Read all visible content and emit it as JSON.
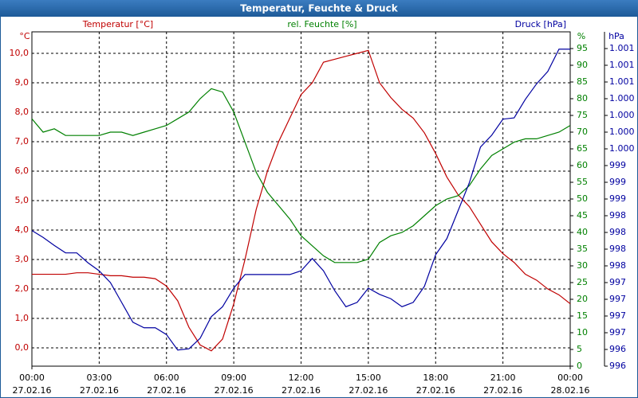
{
  "chart_data": {
    "type": "line",
    "title": "Temperatur, Feuchte & Druck",
    "ylabel": "°C",
    "y2label": "%",
    "y3label": "hPa",
    "x": [
      0,
      0.5,
      1,
      1.5,
      2,
      2.5,
      3,
      3.5,
      4,
      4.5,
      5,
      5.5,
      6,
      6.5,
      7,
      7.5,
      8,
      8.5,
      9,
      9.5,
      10,
      10.5,
      11,
      11.5,
      12,
      12.5,
      13,
      13.5,
      14,
      14.5,
      15,
      15.5,
      16,
      16.5,
      17,
      17.5,
      18,
      18.5,
      19,
      19.5,
      20,
      20.5,
      21,
      21.5,
      22,
      22.5,
      23,
      23.5,
      24
    ],
    "xlim": [
      0,
      24
    ],
    "xticks": [
      {
        "value": 0,
        "label": "00:00"
      },
      {
        "value": 3,
        "label": "03:00"
      },
      {
        "value": 6,
        "label": "06:00"
      },
      {
        "value": 9,
        "label": "09:00"
      },
      {
        "value": 12,
        "label": "12:00"
      },
      {
        "value": 15,
        "label": "15:00"
      },
      {
        "value": 18,
        "label": "18:00"
      },
      {
        "value": 21,
        "label": "21:00"
      },
      {
        "value": 24,
        "label": "00:00"
      }
    ],
    "xtick_dates": [
      "27.02.16",
      "27.02.16",
      "27.02.16",
      "27.02.16",
      "27.02.16",
      "27.02.16",
      "27.02.16",
      "27.02.16",
      "28.02.16"
    ],
    "ylim": [
      -0.62,
      10.73
    ],
    "yticks": [
      {
        "value": 0,
        "label": "0,0"
      },
      {
        "value": 1,
        "label": "1,0"
      },
      {
        "value": 2,
        "label": "2,0"
      },
      {
        "value": 3,
        "label": "3,0"
      },
      {
        "value": 4,
        "label": "4,0"
      },
      {
        "value": 5,
        "label": "5,0"
      },
      {
        "value": 6,
        "label": "6,0"
      },
      {
        "value": 7,
        "label": "7,0"
      },
      {
        "value": 8,
        "label": "8,0"
      },
      {
        "value": 9,
        "label": "9,0"
      },
      {
        "value": 10,
        "label": "10,0"
      }
    ],
    "y2lim": [
      0,
      100
    ],
    "y2ticks": [
      0,
      5,
      10,
      15,
      20,
      25,
      30,
      35,
      40,
      45,
      50,
      55,
      60,
      65,
      70,
      75,
      80,
      85,
      90,
      95
    ],
    "y3lim": [
      996.05,
      1001.45
    ],
    "y3ticks": [
      {
        "value": 996.05,
        "label": "996"
      },
      {
        "value": 996.32,
        "label": "996"
      },
      {
        "value": 996.59,
        "label": "997"
      },
      {
        "value": 996.86,
        "label": "997"
      },
      {
        "value": 997.13,
        "label": "997"
      },
      {
        "value": 997.4,
        "label": "997"
      },
      {
        "value": 997.67,
        "label": "998"
      },
      {
        "value": 997.94,
        "label": "998"
      },
      {
        "value": 998.21,
        "label": "998"
      },
      {
        "value": 998.48,
        "label": "998"
      },
      {
        "value": 998.75,
        "label": "999"
      },
      {
        "value": 999.02,
        "label": "999"
      },
      {
        "value": 999.29,
        "label": "999"
      },
      {
        "value": 999.56,
        "label": "1.000"
      },
      {
        "value": 999.83,
        "label": "1.000"
      },
      {
        "value": 1000.1,
        "label": "1.000"
      },
      {
        "value": 1000.37,
        "label": "1.000"
      },
      {
        "value": 1000.64,
        "label": "1.001"
      },
      {
        "value": 1000.91,
        "label": "1.001"
      },
      {
        "value": 1001.18,
        "label": "1.001"
      }
    ],
    "grid": true,
    "series": [
      {
        "name": "Temperatur [°C]",
        "color": "#c00000",
        "axis": "y",
        "values": [
          2.5,
          2.5,
          2.5,
          2.5,
          2.55,
          2.55,
          2.5,
          2.45,
          2.45,
          2.4,
          2.4,
          2.35,
          2.1,
          1.6,
          0.7,
          0.1,
          -0.1,
          0.3,
          1.5,
          3.0,
          4.7,
          6.0,
          7.0,
          7.8,
          8.6,
          9.0,
          9.7,
          9.8,
          9.9,
          10.0,
          10.1,
          9.0,
          8.5,
          8.1,
          7.8,
          7.3,
          6.6,
          5.8,
          5.2,
          4.8,
          4.2,
          3.6,
          3.2,
          2.9,
          2.5,
          2.3,
          2.0,
          1.8,
          1.5
        ]
      },
      {
        "name": "rel. Feuchte [%]",
        "color": "#008000",
        "axis": "y2",
        "values": [
          74,
          70,
          71,
          69,
          69,
          69,
          69,
          70,
          70,
          69,
          70,
          71,
          72,
          74,
          76,
          80,
          83,
          82,
          76,
          67,
          58,
          52,
          48,
          44,
          39,
          36,
          33,
          31,
          31,
          31,
          32,
          37,
          39,
          40,
          42,
          45,
          48,
          50,
          51,
          54,
          59,
          63,
          65,
          67,
          68,
          68,
          69,
          70,
          72
        ]
      },
      {
        "name": "Druck [hPa]",
        "color": "#0000a0",
        "axis": "y3",
        "values": [
          998.24,
          998.13,
          998.0,
          997.88,
          997.88,
          997.72,
          997.59,
          997.4,
          997.08,
          996.76,
          996.67,
          996.67,
          996.56,
          996.31,
          996.33,
          996.5,
          996.85,
          997.01,
          997.31,
          997.53,
          997.53,
          997.53,
          997.53,
          997.53,
          997.59,
          997.79,
          997.59,
          997.27,
          997.01,
          997.08,
          997.31,
          997.21,
          997.14,
          997.01,
          997.08,
          997.34,
          997.85,
          998.11,
          998.56,
          999.01,
          999.59,
          999.78,
          1000.04,
          1000.06,
          1000.36,
          1000.61,
          1000.81,
          1001.17,
          1001.17
        ]
      }
    ]
  }
}
